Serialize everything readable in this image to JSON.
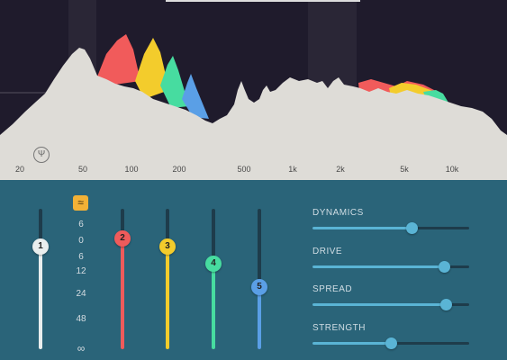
{
  "spectrum": {
    "freq_labels": [
      "20",
      "50",
      "100",
      "200",
      "500",
      "1k",
      "2k",
      "5k",
      "10k"
    ],
    "tuner_icon": "tuning-fork-icon",
    "colors": {
      "background": "#1f1b2c",
      "curve": "#dedcd7",
      "band1": "#f15b5b",
      "band2": "#f3cc2c",
      "band3": "#47dca0",
      "band4": "#5a9fe6"
    }
  },
  "bands": {
    "mode_icon": "tilde-wave-icon",
    "scale": [
      "6",
      "0",
      "6",
      "12",
      "24",
      "48",
      "∞"
    ],
    "sliders": [
      {
        "label": "1",
        "color": "#e9eeee",
        "level": 0.73
      },
      {
        "label": "2",
        "color": "#ef5b5b",
        "level": 0.79
      },
      {
        "label": "3",
        "color": "#f3cc2c",
        "level": 0.73
      },
      {
        "label": "4",
        "color": "#47dca0",
        "level": 0.61
      },
      {
        "label": "5",
        "color": "#5a9fe6",
        "level": 0.44
      }
    ]
  },
  "controls": [
    {
      "label": "DYNAMICS",
      "value": 0.63
    },
    {
      "label": "DRIVE",
      "value": 0.84
    },
    {
      "label": "SPREAD",
      "value": 0.85
    },
    {
      "label": "STRENGTH",
      "value": 0.5
    }
  ]
}
